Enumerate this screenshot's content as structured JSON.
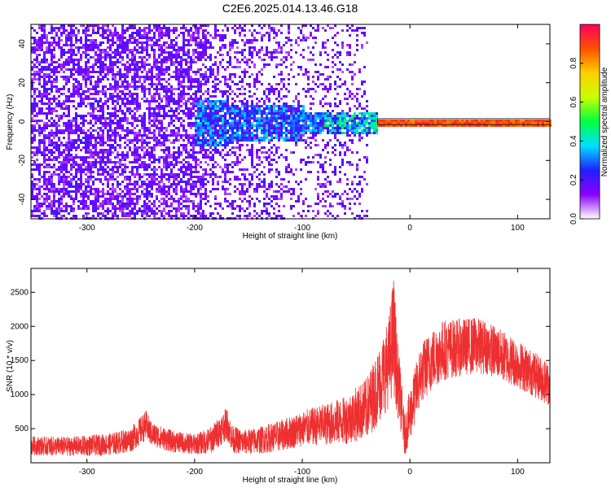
{
  "figure_title": "C2E6.2025.014.13.46.G18",
  "colors": {
    "snr_line": "#ee3030",
    "colormap": [
      "#ffffff",
      "#8a00ff",
      "#2020ff",
      "#00e0ff",
      "#00ff40",
      "#c8ff00",
      "#ffd000",
      "#ff5000",
      "#ff0060"
    ]
  },
  "chart_data": [
    {
      "type": "heatmap",
      "title": "",
      "xlabel": "Height of straight line (km)",
      "ylabel": "Frequency (Hz)",
      "xlim": [
        -352,
        130
      ],
      "ylim": [
        -50,
        50
      ],
      "xticks": [
        -300,
        -200,
        -100,
        0,
        100
      ],
      "yticks": [
        -40,
        -20,
        0,
        20,
        40
      ],
      "colorbar": {
        "label": "Normalized spectral amplitude",
        "range": [
          0,
          1
        ],
        "ticks": [
          "0.0",
          "0.2",
          "0.4",
          "0.6",
          "0.8"
        ]
      },
      "features": [
        {
          "name": "diffuse noise",
          "x_range": [
            -352,
            -40
          ],
          "frequency_range": [
            -50,
            50
          ],
          "amplitude": 0.08
        },
        {
          "name": "signal band",
          "x_range": [
            -200,
            -30
          ],
          "frequency_center": 0,
          "frequency_spread": [
            -12,
            12
          ],
          "amplitude": 0.25
        },
        {
          "name": "narrow carrier",
          "x_range": [
            -30,
            130
          ],
          "frequency": 0,
          "amplitude": 0.95
        }
      ]
    },
    {
      "type": "line",
      "title": "",
      "xlabel": "Height of straight line (km)",
      "ylabel": "SNR (10 * v/v)",
      "xlim": [
        -352,
        130
      ],
      "ylim": [
        0,
        2850
      ],
      "xticks": [
        -300,
        -200,
        -100,
        0,
        100
      ],
      "yticks": [
        500,
        1000,
        1500,
        2000,
        2500
      ],
      "series": [
        {
          "x": [
            -350,
            -320,
            -300,
            -280,
            -260,
            -245,
            -240,
            -220,
            -200,
            -185,
            -170,
            -165,
            -155,
            -140,
            -120,
            -100,
            -80,
            -60,
            -40,
            -30,
            -20,
            -15,
            -12,
            -10,
            -5,
            0,
            10,
            20,
            30,
            50,
            60,
            70,
            80,
            100,
            110,
            120,
            130
          ],
          "y": [
            250,
            240,
            250,
            270,
            330,
            550,
            420,
            310,
            270,
            330,
            580,
            350,
            300,
            330,
            400,
            500,
            560,
            620,
            800,
            1100,
            1450,
            1900,
            1300,
            1100,
            400,
            700,
            1300,
            1500,
            1650,
            1700,
            1720,
            1700,
            1620,
            1450,
            1350,
            1250,
            1150
          ],
          "noise_amplitude": [
            140,
            140,
            150,
            160,
            180,
            220,
            180,
            160,
            150,
            200,
            240,
            200,
            180,
            200,
            230,
            260,
            300,
            350,
            450,
            550,
            650,
            900,
            600,
            500,
            300,
            400,
            450,
            450,
            450,
            420,
            420,
            400,
            380,
            360,
            340,
            330,
            320
          ]
        }
      ]
    }
  ]
}
